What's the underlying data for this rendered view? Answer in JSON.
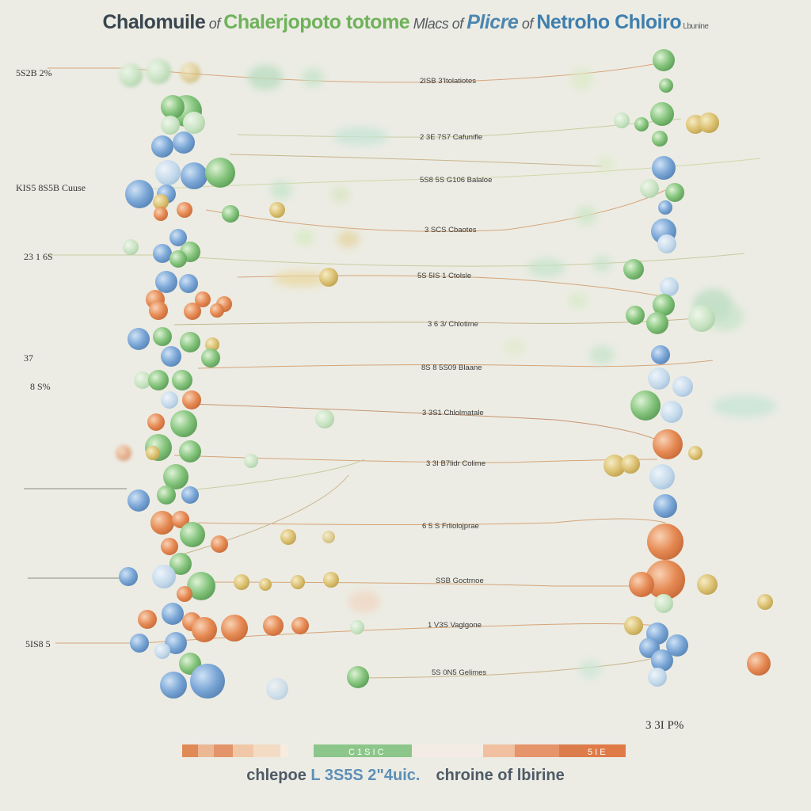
{
  "title": {
    "part1": "Chalomuile",
    "part2": " of ",
    "part3": "Chalerjopoto totome",
    "part4": " Mlacs of ",
    "part5": "Plicre",
    "part6": " of ",
    "part7": "Netroho Chloiro",
    "part8": " Lbunine"
  },
  "left_labels": [
    "5S2B 2%",
    "KIS5 8S5B Cuuse",
    "23 1 6S",
    "37",
    "8 S%",
    "5IS8 5"
  ],
  "center_labels": [
    "2ISB 3'Itolatiotes",
    "2 3E 7S7 Cafunifle",
    "5S8 5S G106 Balaloe",
    "3 SCS Cbaotes",
    "5S 5IS 1 Ctolsle",
    "3 6 3/ Chlotime",
    "8S 8 5S09 Blaane",
    "3 3S1 Chlolmatale",
    "3 3I B7lidr Colime",
    "6 5 S Frliolojprae",
    "SSB Goctrnoe",
    "1 V3S Vaglgone",
    "5S 0N5 Gelimes"
  ],
  "right_labels": [
    "3 3I P%"
  ],
  "bottom_title": {
    "part1": "chlepoe ",
    "part2": "L 3S5S 2\"4uic.",
    "part3": "chroine of lbirine"
  },
  "legend_bar": {
    "left_text": "C 1 S I C",
    "right_text": "5 I E"
  },
  "colors": {
    "background": "#ecece4",
    "blue": "#6f9fd0",
    "green": "#7cc07a",
    "orange": "#e48850",
    "yellow": "#dcc070",
    "line_orange": "#e0a070",
    "line_green": "#a8c878"
  }
}
